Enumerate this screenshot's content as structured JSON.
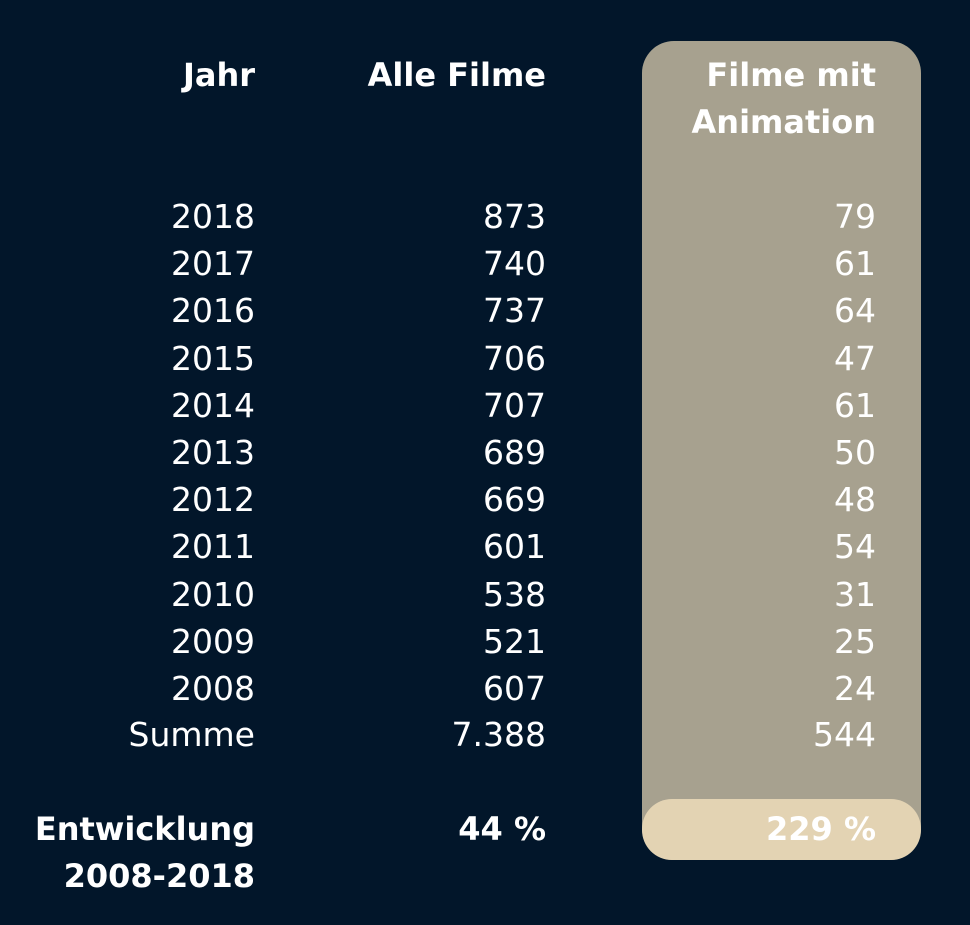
{
  "colors": {
    "background": "#02162a",
    "highlight_column": "#a7a18f",
    "highlight_total": "#e3d3b3",
    "text": "#ffffff"
  },
  "chart_data": {
    "type": "table",
    "headers": {
      "year": "Jahr",
      "all": "Alle Filme",
      "anim_line1": "Filme mit",
      "anim_line2": "Animation"
    },
    "rows": [
      {
        "year": "2018",
        "all": "873",
        "anim": "79"
      },
      {
        "year": "2017",
        "all": "740",
        "anim": "61"
      },
      {
        "year": "2016",
        "all": "737",
        "anim": "64"
      },
      {
        "year": "2015",
        "all": "706",
        "anim": "47"
      },
      {
        "year": "2014",
        "all": "707",
        "anim": "61"
      },
      {
        "year": "2013",
        "all": "689",
        "anim": "50"
      },
      {
        "year": "2012",
        "all": "669",
        "anim": "48"
      },
      {
        "year": "2011",
        "all": "601",
        "anim": "54"
      },
      {
        "year": "2010",
        "all": "538",
        "anim": "31"
      },
      {
        "year": "2009",
        "all": "521",
        "anim": "25"
      },
      {
        "year": "2008",
        "all": "607",
        "anim": "24"
      }
    ],
    "sum": {
      "label": "Summe",
      "all": "7.388",
      "anim": "544"
    },
    "development": {
      "label_line1": "Entwicklung",
      "label_line2": "2008-2018",
      "all": "44 %",
      "anim": "229 %"
    }
  }
}
